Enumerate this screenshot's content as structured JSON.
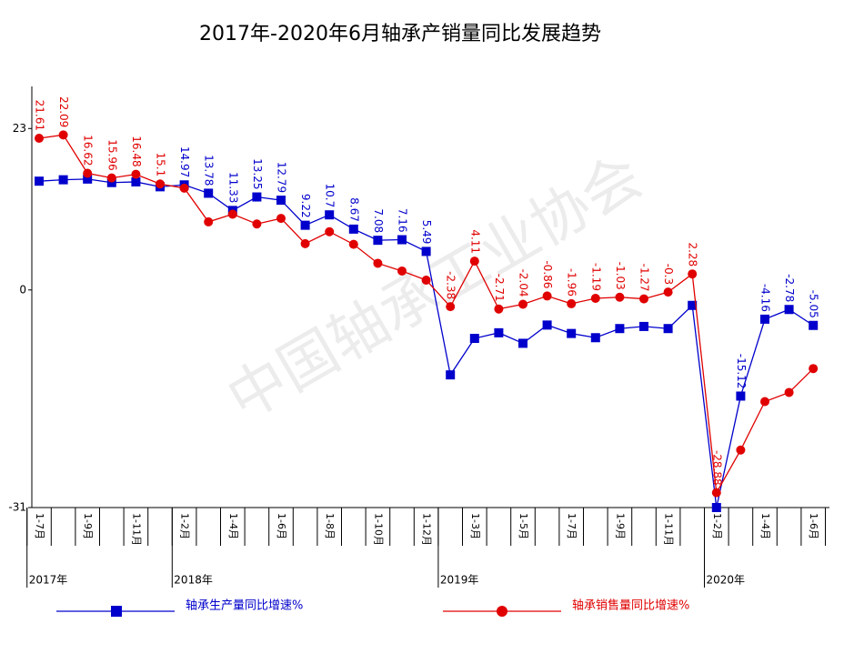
{
  "chart_data": {
    "type": "line",
    "title": "2017年-2020年6月轴承产销量同比发展趋势",
    "watermark": "中国轴承工业协会",
    "categories": [
      "1-7月",
      null,
      "1-9月",
      null,
      "1-11月",
      null,
      "1-2月",
      null,
      "1-4月",
      null,
      "1-6月",
      null,
      "1-8月",
      null,
      "1-10月",
      null,
      "1-12月",
      null,
      "1-3月",
      null,
      "1-5月",
      null,
      "1-7月",
      null,
      "1-9月",
      null,
      "1-11月",
      null,
      "1-2月",
      null,
      "1-4月",
      null,
      "1-6月"
    ],
    "x_groups": [
      "2017年",
      "2018年",
      "2019年",
      "2020年"
    ],
    "series": [
      {
        "name": "轴承生产量同比增速%",
        "color": "#0000cc",
        "marker": "square",
        "values": [
          15.5,
          15.7,
          15.8,
          15.3,
          15.4,
          14.7,
          14.97,
          13.78,
          11.33,
          13.25,
          12.79,
          9.22,
          10.7,
          8.67,
          7.08,
          7.16,
          5.49,
          -12.1,
          -6.9,
          -6.1,
          -7.6,
          -5.0,
          -6.2,
          -6.8,
          -5.5,
          -5.2,
          -5.5,
          -2.2,
          -31,
          -15.12,
          -4.16,
          -2.78,
          -5.05
        ],
        "value_labels": [
          null,
          null,
          null,
          null,
          null,
          null,
          "14.97",
          "13.78",
          "11.33",
          "13.25",
          "12.79",
          "9.22",
          "10.7",
          "8.67",
          "7.08",
          "7.16",
          "5.49",
          null,
          null,
          null,
          null,
          null,
          null,
          null,
          null,
          null,
          null,
          null,
          null,
          "-15.12",
          "-4.16",
          "-2.78",
          "-5.05"
        ]
      },
      {
        "name": "轴承销售量同比增速%",
        "color": "#e00000",
        "marker": "circle",
        "values": [
          21.61,
          22.09,
          16.62,
          15.96,
          16.48,
          15.1,
          14.5,
          9.7,
          10.8,
          9.4,
          10.2,
          6.6,
          8.3,
          6.5,
          3.8,
          2.7,
          1.4,
          -2.38,
          4.11,
          -2.71,
          -2.04,
          -0.86,
          -1.96,
          -1.19,
          -1.03,
          -1.27,
          -0.3,
          2.28,
          -28.88,
          -22.8,
          -15.9,
          -14.6,
          -11.2
        ],
        "value_labels": [
          "21.61",
          "22.09",
          "16.62",
          "15.96",
          "16.48",
          "15.1",
          null,
          null,
          null,
          null,
          null,
          null,
          null,
          null,
          null,
          null,
          null,
          "-2.38",
          "4.11",
          "-2.71",
          "-2.04",
          "-0.86",
          "-1.96",
          "-1.19",
          "-1.03",
          "-1.27",
          "-0.3",
          "2.28",
          "-28.88",
          null,
          null,
          null,
          null
        ]
      }
    ],
    "ylim": [
      -31,
      29
    ],
    "yticks": [
      23,
      0,
      -31
    ],
    "grid": false
  }
}
